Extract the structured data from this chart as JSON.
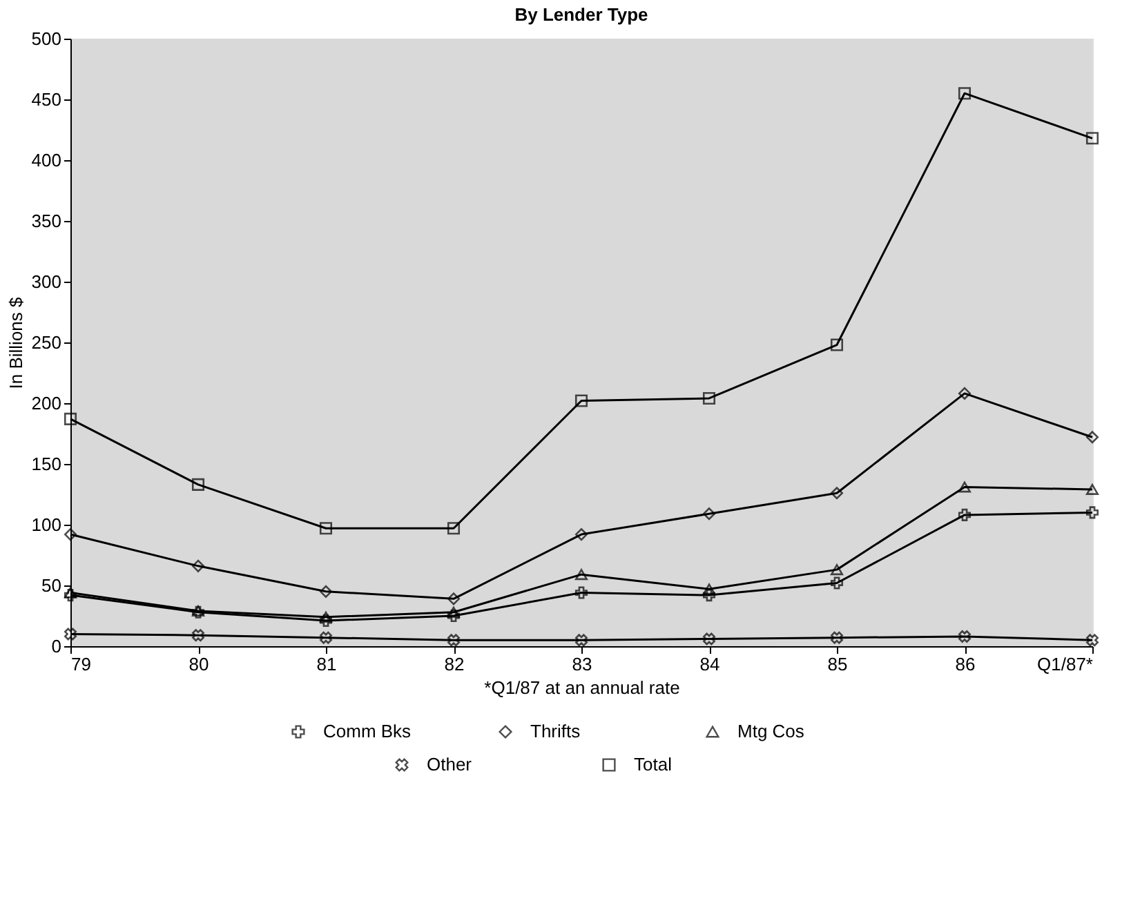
{
  "chart_data": {
    "type": "line",
    "title": "By Lender Type",
    "xlabel": "*Q1/87 at an annual rate",
    "ylabel": "In Billions $",
    "categories": [
      "79",
      "80",
      "81",
      "82",
      "83",
      "84",
      "85",
      "86",
      "Q1/87*"
    ],
    "ylim": [
      0,
      500
    ],
    "yticks": [
      0,
      50,
      100,
      150,
      200,
      250,
      300,
      350,
      400,
      450,
      500
    ],
    "grid": false,
    "legend": "bottom",
    "series": [
      {
        "name": "Comm Bks",
        "color": "#000000",
        "marker": "cross",
        "values": [
          42,
          28,
          21,
          25,
          44,
          42,
          52,
          108,
          110
        ]
      },
      {
        "name": "Thrifts",
        "color": "#000000",
        "marker": "diamond",
        "values": [
          92,
          66,
          45,
          39,
          92,
          109,
          126,
          208,
          172
        ]
      },
      {
        "name": "Mtg Cos",
        "color": "#000000",
        "marker": "triangle",
        "values": [
          44,
          29,
          24,
          28,
          59,
          47,
          63,
          131,
          129
        ]
      },
      {
        "name": "Other",
        "color": "#000000",
        "marker": "x",
        "values": [
          10,
          9,
          7,
          5,
          5,
          6,
          7,
          8,
          5
        ]
      },
      {
        "name": "Total",
        "color": "#000000",
        "marker": "square",
        "values": [
          187,
          133,
          97,
          97,
          202,
          204,
          248,
          455,
          418
        ]
      }
    ]
  }
}
